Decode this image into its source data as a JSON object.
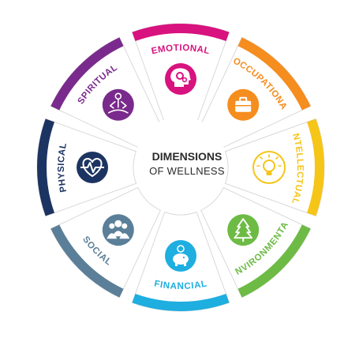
{
  "center": {
    "title": "DIMENSIONS",
    "subtitle": "OF WELLNESS"
  },
  "dimensions": [
    {
      "label": "EMOTIONAL",
      "color": "#d8127e",
      "icon": "head-gears-icon"
    },
    {
      "label": "OCCUPATIONAL",
      "color": "#f58d1f",
      "icon": "briefcase-icon"
    },
    {
      "label": "INTELLECTUAL",
      "color": "#f5c518",
      "icon": "lightbulb-icon"
    },
    {
      "label": "ENVIRONMENTAL",
      "color": "#6dbb45",
      "icon": "tree-icon"
    },
    {
      "label": "FINANCIAL",
      "color": "#1eaee0",
      "icon": "piggy-bank-icon"
    },
    {
      "label": "SOCIAL",
      "color": "#5b7f98",
      "icon": "people-icon"
    },
    {
      "label": "PHYSICAL",
      "color": "#1c3461",
      "icon": "heart-pulse-icon"
    },
    {
      "label": "SPIRITUAL",
      "color": "#7a2a8c",
      "icon": "meditation-icon"
    }
  ]
}
